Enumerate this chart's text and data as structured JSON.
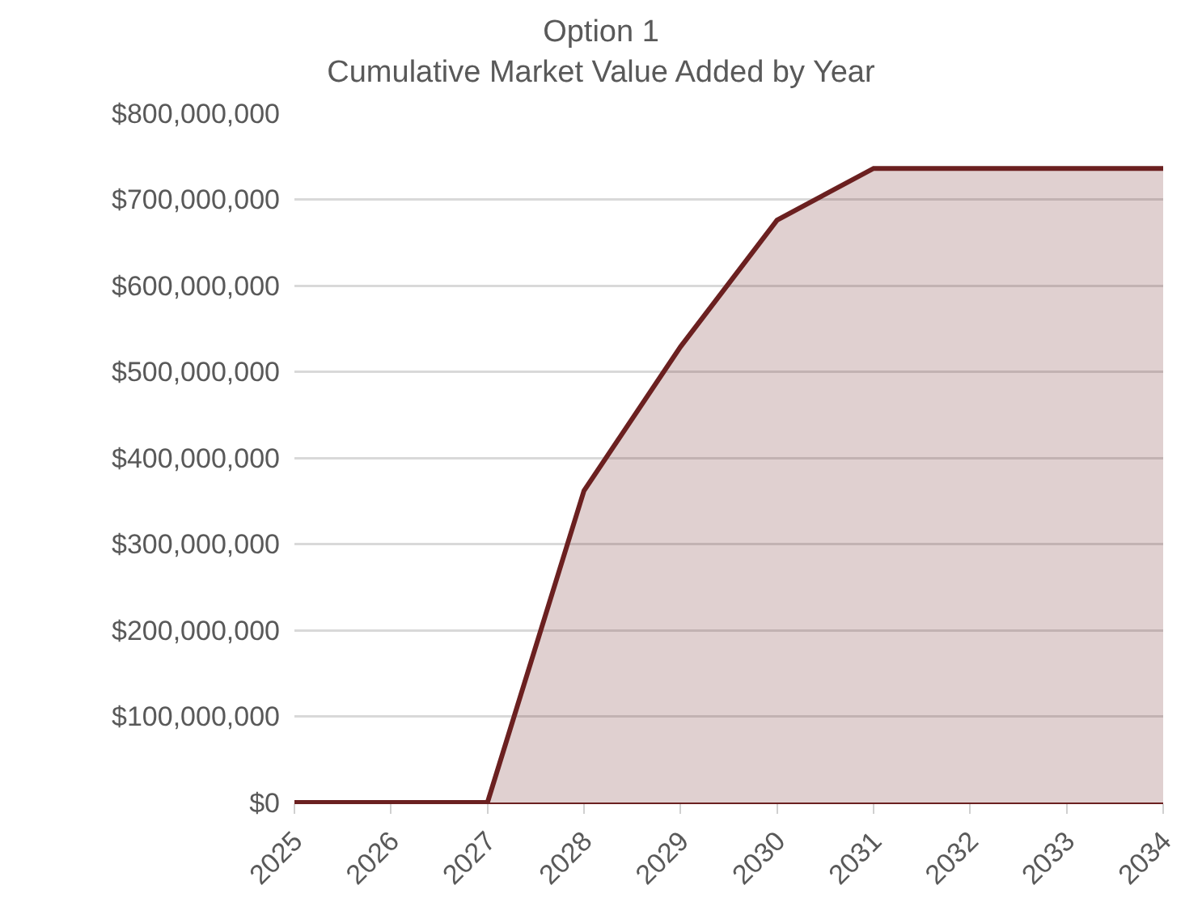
{
  "chart_data": {
    "type": "area",
    "title": "Option 1",
    "subtitle": "Cumulative Market Value Added by Year",
    "categories": [
      "2025",
      "2026",
      "2027",
      "2028",
      "2029",
      "2030",
      "2031",
      "2032",
      "2033",
      "2034"
    ],
    "series": [
      {
        "color": "#6b2020",
        "values": [
          0,
          0,
          0,
          362000000,
          529000000,
          676000000,
          736000000,
          736000000,
          736000000,
          736000000
        ]
      }
    ],
    "ylim": [
      0,
      800000000
    ],
    "yticks": [
      {
        "value": 0,
        "label": "$0"
      },
      {
        "value": 100000000,
        "label": "$100,000,000"
      },
      {
        "value": 200000000,
        "label": "$200,000,000"
      },
      {
        "value": 300000000,
        "label": "$300,000,000"
      },
      {
        "value": 400000000,
        "label": "$400,000,000"
      },
      {
        "value": 500000000,
        "label": "$500,000,000"
      },
      {
        "value": 600000000,
        "label": "$600,000,000"
      },
      {
        "value": 700000000,
        "label": "$700,000,000"
      },
      {
        "value": 800000000,
        "label": "$800,000,000"
      }
    ],
    "grid": "y",
    "legend": false
  }
}
